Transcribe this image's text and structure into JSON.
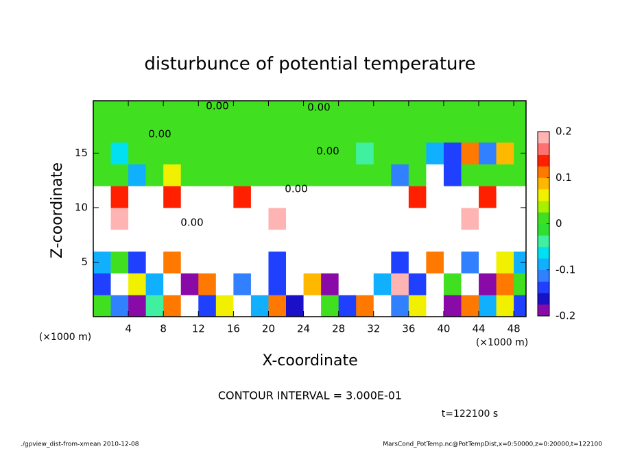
{
  "chart_data": {
    "type": "heatmap",
    "title": "disturbunce of potential temperature",
    "x_label": "X-coordinate",
    "y_label": "Z-coordinate",
    "x_unit": "(×1000 m)",
    "y_unit": "(×1000 m)",
    "note": "CONTOUR INTERVAL = 3.000E-01",
    "time_label": "t=122100 s",
    "footer_left": "./gpview_dist-from-xmean  2010-12-08",
    "footer_right": "MarsCond_PotTemp.nc@PotTempDist,x=0:50000,z=0:20000,t=122100",
    "contour_labels": [
      "0.00",
      "0.00",
      "0.00",
      "0.00",
      "0.00",
      "0.00"
    ],
    "xlim": [
      0,
      49.4
    ],
    "ylim": [
      0,
      19.8
    ],
    "xticks": [
      4,
      8,
      12,
      16,
      20,
      24,
      28,
      32,
      36,
      40,
      44,
      48
    ],
    "yticks": [
      5,
      10,
      15
    ],
    "x": [
      1,
      3,
      5,
      7,
      9,
      11,
      13,
      15,
      17,
      19,
      21,
      23,
      25,
      27,
      29,
      31,
      33,
      35,
      37,
      39,
      41,
      43,
      45,
      47,
      49
    ],
    "y": [
      1,
      3,
      5,
      7,
      9,
      11,
      13,
      15,
      17,
      19
    ],
    "cell_size": [
      2,
      2
    ],
    "values": [
      [
        0.02,
        -0.12,
        -0.18,
        -0.05,
        0.1,
        0.3,
        -0.15,
        0.05,
        0.3,
        -0.1,
        0.1,
        -0.16,
        0.3,
        0.0,
        -0.15,
        0.1,
        0.3,
        -0.12,
        0.05,
        0.3,
        -0.18,
        0.1,
        -0.1,
        0.05,
        -0.15
      ],
      [
        -0.15,
        0.3,
        0.05,
        -0.1,
        0.3,
        -0.18,
        0.1,
        0.3,
        -0.12,
        0.3,
        -0.15,
        0.3,
        0.08,
        -0.2,
        0.3,
        0.3,
        -0.1,
        0.2,
        -0.15,
        0.3,
        0.0,
        0.3,
        -0.18,
        0.1,
        0.02
      ],
      [
        -0.1,
        0.0,
        -0.15,
        0.3,
        0.1,
        0.3,
        0.3,
        -0.3,
        0.3,
        0.3,
        -0.15,
        0.3,
        -0.3,
        0.3,
        0.3,
        -0.3,
        0.3,
        -0.15,
        0.3,
        0.1,
        0.3,
        -0.12,
        0.3,
        0.05,
        -0.1
      ],
      [
        0.3,
        -0.3,
        0.3,
        0.3,
        -0.3,
        0.3,
        0.3,
        -0.3,
        0.3,
        0.3,
        -0.3,
        0.3,
        0.3,
        -0.3,
        0.3,
        0.3,
        -0.3,
        0.3,
        0.3,
        -0.3,
        0.3,
        0.3,
        -0.3,
        0.3,
        0.3
      ],
      [
        0.3,
        0.18,
        0.3,
        -0.3,
        0.3,
        0.3,
        0.3,
        -0.3,
        0.3,
        0.3,
        0.18,
        0.3,
        0.3,
        0.3,
        -0.3,
        0.3,
        0.3,
        0.3,
        -0.3,
        0.3,
        0.3,
        0.18,
        0.3,
        0.3,
        0.3
      ],
      [
        0.3,
        0.15,
        0.3,
        0.3,
        0.15,
        -0.3,
        0.3,
        0.3,
        0.15,
        0.3,
        0.3,
        0.3,
        -0.3,
        0.3,
        0.3,
        0.3,
        0.3,
        0.3,
        0.15,
        0.3,
        0.3,
        0.3,
        0.15,
        0.3,
        0.3
      ],
      [
        0.0,
        0.0,
        -0.08,
        0.0,
        0.05,
        0.0,
        0.0,
        0.0,
        0.0,
        0.0,
        0.0,
        0.0,
        0.02,
        0.0,
        0.0,
        0.0,
        0.0,
        -0.12,
        0.0,
        0.3,
        -0.15,
        0.0,
        0.0,
        0.0,
        0.0
      ],
      [
        0.0,
        -0.06,
        0.0,
        0.0,
        0.0,
        0.0,
        0.0,
        0.0,
        0.0,
        0.0,
        0.0,
        0.0,
        0.0,
        0.0,
        0.0,
        -0.05,
        0.0,
        0.0,
        0.0,
        -0.1,
        -0.15,
        0.1,
        -0.12,
        0.08,
        0.0
      ],
      [
        0.0,
        0.0,
        0.0,
        0.0,
        0.0,
        0.0,
        0.0,
        0.0,
        0.0,
        0.0,
        0.0,
        0.0,
        0.0,
        0.0,
        0.0,
        0.0,
        0.0,
        0.0,
        0.02,
        0.0,
        0.0,
        0.0,
        0.0,
        0.0,
        0.0
      ],
      [
        0.01,
        0.01,
        0.01,
        0.01,
        0.01,
        0.01,
        0.01,
        0.01,
        0.01,
        0.01,
        0.01,
        0.01,
        0.01,
        0.01,
        0.01,
        0.01,
        0.01,
        0.01,
        0.01,
        0.01,
        0.01,
        0.01,
        0.01,
        0.01,
        0.01
      ]
    ],
    "colorbar": {
      "range": [
        -0.2,
        0.2
      ],
      "ticks": [
        0.2,
        0.1,
        0,
        -0.1,
        -0.2
      ],
      "colors": [
        "#8a0aa8",
        "#1a10c8",
        "#2040ff",
        "#3080ff",
        "#10b0ff",
        "#00e0f0",
        "#40f0a0",
        "#30e030",
        "#40e020",
        "#a8f000",
        "#f0f000",
        "#ffb800",
        "#ff7800",
        "#ff2000",
        "#ff7070",
        "#ffb4b4"
      ]
    }
  }
}
